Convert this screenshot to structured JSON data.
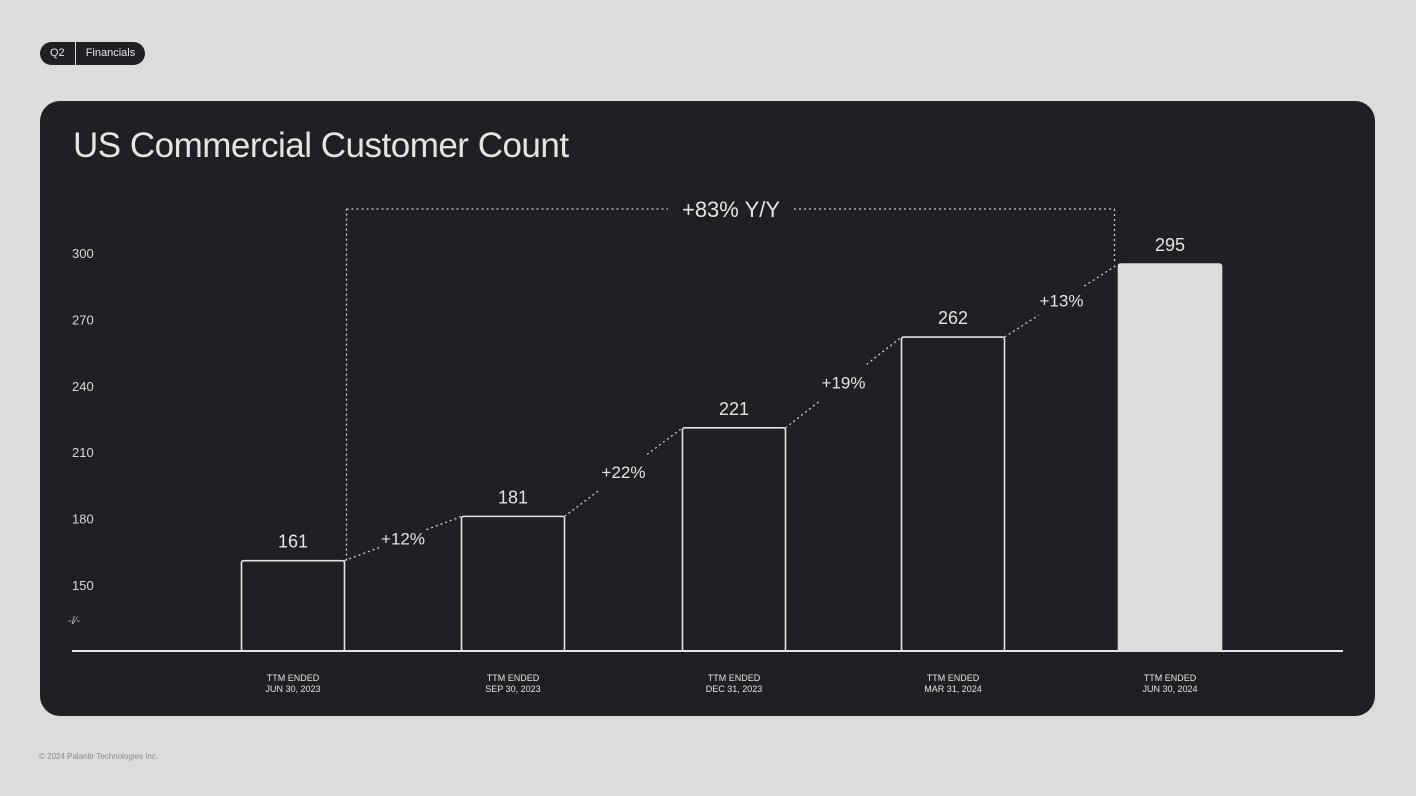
{
  "header": {
    "tag_quarter": "Q2",
    "tag_section": "Financials"
  },
  "footer": {
    "copyright": "© 2024 Palantir Technologies Inc."
  },
  "colors": {
    "page_bg": "#dcdcdc",
    "card_bg": "#1e2023",
    "foreground": "#e4e4e4",
    "highlight_bar": "#dcdcdc"
  },
  "chart_data": {
    "type": "bar",
    "title": "US Commercial Customer Count",
    "categories": [
      [
        "TTM ENDED",
        "JUN 30, 2023"
      ],
      [
        "TTM ENDED",
        "SEP 30, 2023"
      ],
      [
        "TTM ENDED",
        "DEC 31, 2023"
      ],
      [
        "TTM ENDED",
        "MAR 31, 2024"
      ],
      [
        "TTM ENDED",
        "JUN 30, 2024"
      ]
    ],
    "values": [
      161,
      181,
      221,
      262,
      295
    ],
    "value_labels": [
      "161",
      "181",
      "221",
      "262",
      "295"
    ],
    "growth_labels": [
      "+12%",
      "+22%",
      "+19%",
      "+13%"
    ],
    "yoy_label": "+83% Y/Y",
    "y_ticks": [
      150,
      180,
      210,
      240,
      270,
      300
    ],
    "axis_break_symbol": "-/⁄-",
    "ylim": [
      150,
      300
    ],
    "highlighted_index": 4,
    "grid": false,
    "legend": "none"
  }
}
